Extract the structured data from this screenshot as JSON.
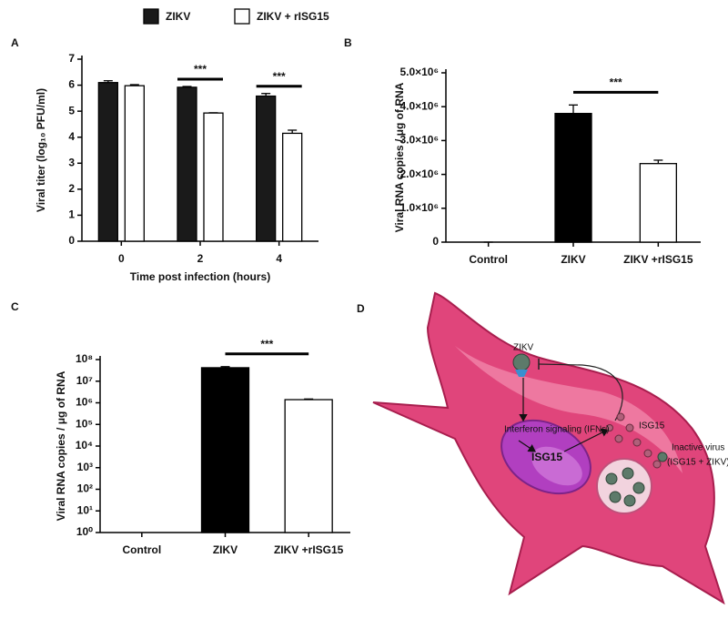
{
  "chart_data": [
    {
      "type": "bar",
      "panel": "A",
      "ylabel": "Viral titer (log₁₀ PFU/ml)",
      "xlabel": "Time post infection (hours)",
      "categories": [
        "0",
        "2",
        "4"
      ],
      "series": [
        {
          "name": "ZIKV",
          "color": "#1a1a1a",
          "values": [
            6.1,
            5.92,
            5.58
          ],
          "errors": [
            0.07,
            0.03,
            0.1
          ]
        },
        {
          "name": "ZIKV + rISG15",
          "color": "#ffffff",
          "values": [
            5.98,
            4.93,
            4.15
          ],
          "errors": [
            0.04,
            0.01,
            0.12
          ]
        }
      ],
      "ylim": [
        0,
        7
      ],
      "yticks": [
        0,
        1,
        2,
        3,
        4,
        5,
        6,
        7
      ],
      "annotations": [
        {
          "text": "***",
          "category": "2"
        },
        {
          "text": "***",
          "category": "4"
        }
      ]
    },
    {
      "type": "bar",
      "panel": "B",
      "ylabel": "Viral RNA copies / μg of RNA",
      "categories": [
        "Control",
        "ZIKV",
        "ZIKV +rISG15"
      ],
      "values": [
        0,
        3800000,
        2320000
      ],
      "errors": [
        0,
        250000,
        100000
      ],
      "colors": [
        "#000000",
        "#000000",
        "#ffffff"
      ],
      "ylim": [
        0,
        5000000
      ],
      "yticks": [
        0,
        {
          "value": 1000000,
          "label": "1.0×10⁶"
        },
        {
          "value": 2000000,
          "label": "2.0×10⁶"
        },
        {
          "value": 3000000,
          "label": "3.0×10⁶"
        },
        {
          "value": 4000000,
          "label": "4.0×10⁶"
        },
        {
          "value": 5000000,
          "label": "5.0×10⁶"
        }
      ],
      "annotations": [
        {
          "text": "***",
          "from": "ZIKV",
          "to": "ZIKV +rISG15"
        }
      ]
    },
    {
      "type": "bar",
      "panel": "C",
      "log_scale": true,
      "ylabel": "Viral RNA copies / μg of RNA",
      "categories": [
        "Control",
        "ZIKV",
        "ZIKV +rISG15"
      ],
      "values": [
        null,
        42000000,
        1400000
      ],
      "errors": [
        null,
        5000000,
        100000
      ],
      "colors": [
        "#000000",
        "#000000",
        "#ffffff"
      ],
      "ylim": [
        1,
        100000000
      ],
      "yticks": [
        {
          "value": 1,
          "label": "10⁰"
        },
        {
          "value": 10,
          "label": "10¹"
        },
        {
          "value": 100,
          "label": "10²"
        },
        {
          "value": 1000,
          "label": "10³"
        },
        {
          "value": 10000,
          "label": "10⁴"
        },
        {
          "value": 100000,
          "label": "10⁵"
        },
        {
          "value": 1000000,
          "label": "10⁶"
        },
        {
          "value": 10000000,
          "label": "10⁷"
        },
        {
          "value": 100000000,
          "label": "10⁸"
        }
      ],
      "annotations": [
        {
          "text": "***",
          "from": "ZIKV",
          "to": "ZIKV +rISG15"
        }
      ]
    }
  ],
  "diagram": {
    "panel": "D",
    "virus": "ZIKV",
    "signaling": "Interferon signaling (IFNs)",
    "nucleus_product": "ISG15",
    "secreted": "ISG15",
    "inactive": "Inactive virus",
    "inactive_detail": "(ISG15 + ZIKV)"
  }
}
